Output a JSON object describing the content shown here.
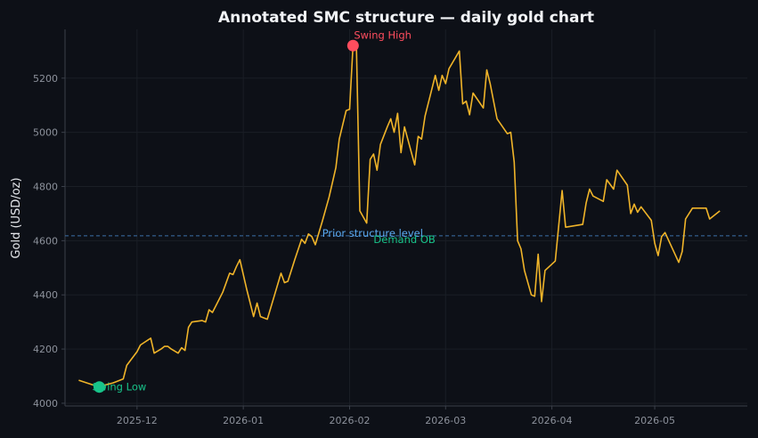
{
  "chart_data": {
    "type": "line",
    "title": "Annotated SMC structure — daily gold chart",
    "xlabel": "",
    "ylabel": "Gold (USD/oz)",
    "ylim": [
      3990,
      5380
    ],
    "xlim": [
      "2025-11-10",
      "2026-05-28"
    ],
    "grid": true,
    "yticks": [
      4000,
      4200,
      4400,
      4600,
      4800,
      5000,
      5200
    ],
    "xticks": [
      {
        "date": "2025-12-01",
        "label": "2025-12"
      },
      {
        "date": "2026-01-01",
        "label": "2026-01"
      },
      {
        "date": "2026-02-01",
        "label": "2026-02"
      },
      {
        "date": "2026-03-01",
        "label": "2026-03"
      },
      {
        "date": "2026-04-01",
        "label": "2026-04"
      },
      {
        "date": "2026-05-01",
        "label": "2026-05"
      }
    ],
    "series": [
      {
        "color": "#f0b429",
        "points": [
          [
            "2025-11-14",
            4085
          ],
          [
            "2025-11-20",
            4060
          ],
          [
            "2025-11-21",
            4065
          ],
          [
            "2025-11-24",
            4075
          ],
          [
            "2025-11-27",
            4090
          ],
          [
            "2025-11-28",
            4140
          ],
          [
            "2025-12-01",
            4190
          ],
          [
            "2025-12-02",
            4215
          ],
          [
            "2025-12-05",
            4240
          ],
          [
            "2025-12-06",
            4185
          ],
          [
            "2025-12-08",
            4200
          ],
          [
            "2025-12-09",
            4210
          ],
          [
            "2025-12-10",
            4210
          ],
          [
            "2025-12-11",
            4200
          ],
          [
            "2025-12-13",
            4185
          ],
          [
            "2025-12-14",
            4205
          ],
          [
            "2025-12-15",
            4195
          ],
          [
            "2025-12-16",
            4280
          ],
          [
            "2025-12-17",
            4300
          ],
          [
            "2025-12-20",
            4305
          ],
          [
            "2025-12-21",
            4300
          ],
          [
            "2025-12-22",
            4345
          ],
          [
            "2025-12-23",
            4335
          ],
          [
            "2025-12-24",
            4360
          ],
          [
            "2025-12-26",
            4410
          ],
          [
            "2025-12-28",
            4480
          ],
          [
            "2025-12-29",
            4475
          ],
          [
            "2025-12-30",
            4505
          ],
          [
            "2025-12-31",
            4530
          ],
          [
            "2026-01-02",
            4420
          ],
          [
            "2026-01-04",
            4320
          ],
          [
            "2026-01-05",
            4370
          ],
          [
            "2026-01-06",
            4320
          ],
          [
            "2026-01-08",
            4310
          ],
          [
            "2026-01-10",
            4395
          ],
          [
            "2026-01-12",
            4480
          ],
          [
            "2026-01-13",
            4445
          ],
          [
            "2026-01-14",
            4450
          ],
          [
            "2026-01-16",
            4530
          ],
          [
            "2026-01-18",
            4605
          ],
          [
            "2026-01-19",
            4590
          ],
          [
            "2026-01-20",
            4625
          ],
          [
            "2026-01-21",
            4615
          ],
          [
            "2026-01-22",
            4585
          ],
          [
            "2026-01-24",
            4670
          ],
          [
            "2026-01-26",
            4760
          ],
          [
            "2026-01-28",
            4870
          ],
          [
            "2026-01-29",
            4975
          ],
          [
            "2026-01-31",
            5080
          ],
          [
            "2026-02-01",
            5085
          ],
          [
            "2026-02-02",
            5320
          ],
          [
            "2026-02-03",
            5310
          ],
          [
            "2026-02-04",
            4710
          ],
          [
            "2026-02-06",
            4665
          ],
          [
            "2026-02-07",
            4900
          ],
          [
            "2026-02-08",
            4920
          ],
          [
            "2026-02-09",
            4860
          ],
          [
            "2026-02-10",
            4955
          ],
          [
            "2026-02-12",
            5020
          ],
          [
            "2026-02-13",
            5050
          ],
          [
            "2026-02-14",
            5000
          ],
          [
            "2026-02-15",
            5070
          ],
          [
            "2026-02-16",
            4925
          ],
          [
            "2026-02-17",
            5020
          ],
          [
            "2026-02-20",
            4880
          ],
          [
            "2026-02-21",
            4985
          ],
          [
            "2026-02-22",
            4975
          ],
          [
            "2026-02-23",
            5060
          ],
          [
            "2026-02-26",
            5210
          ],
          [
            "2026-02-27",
            5155
          ],
          [
            "2026-02-28",
            5210
          ],
          [
            "2026-03-01",
            5180
          ],
          [
            "2026-03-02",
            5235
          ],
          [
            "2026-03-05",
            5300
          ],
          [
            "2026-03-06",
            5105
          ],
          [
            "2026-03-07",
            5115
          ],
          [
            "2026-03-08",
            5065
          ],
          [
            "2026-03-09",
            5145
          ],
          [
            "2026-03-12",
            5090
          ],
          [
            "2026-03-13",
            5230
          ],
          [
            "2026-03-14",
            5180
          ],
          [
            "2026-03-16",
            5050
          ],
          [
            "2026-03-19",
            4995
          ],
          [
            "2026-03-20",
            5000
          ],
          [
            "2026-03-21",
            4890
          ],
          [
            "2026-03-22",
            4600
          ],
          [
            "2026-03-23",
            4570
          ],
          [
            "2026-03-24",
            4490
          ],
          [
            "2026-03-26",
            4400
          ],
          [
            "2026-03-27",
            4395
          ],
          [
            "2026-03-28",
            4550
          ],
          [
            "2026-03-29",
            4375
          ],
          [
            "2026-03-30",
            4490
          ],
          [
            "2026-04-02",
            4525
          ],
          [
            "2026-04-04",
            4785
          ],
          [
            "2026-04-05",
            4650
          ],
          [
            "2026-04-10",
            4660
          ],
          [
            "2026-04-11",
            4740
          ],
          [
            "2026-04-12",
            4790
          ],
          [
            "2026-04-13",
            4765
          ],
          [
            "2026-04-16",
            4745
          ],
          [
            "2026-04-17",
            4825
          ],
          [
            "2026-04-19",
            4790
          ],
          [
            "2026-04-20",
            4860
          ],
          [
            "2026-04-23",
            4805
          ],
          [
            "2026-04-24",
            4700
          ],
          [
            "2026-04-25",
            4735
          ],
          [
            "2026-04-26",
            4705
          ],
          [
            "2026-04-27",
            4725
          ],
          [
            "2026-04-30",
            4675
          ],
          [
            "2026-05-01",
            4590
          ],
          [
            "2026-05-02",
            4545
          ],
          [
            "2026-05-03",
            4615
          ],
          [
            "2026-05-04",
            4630
          ],
          [
            "2026-05-08",
            4520
          ],
          [
            "2026-05-09",
            4560
          ],
          [
            "2026-05-10",
            4680
          ],
          [
            "2026-05-12",
            4720
          ],
          [
            "2026-05-16",
            4720
          ],
          [
            "2026-05-17",
            4680
          ],
          [
            "2026-05-20",
            4710
          ]
        ]
      }
    ],
    "reference_lines": [
      {
        "y": 4618,
        "color": "#3d6fa8",
        "style": "dashed"
      }
    ],
    "annotations": [
      {
        "text": "Swing High",
        "x": "2026-02-02",
        "y": 5320,
        "color": "#ff4d5e",
        "marker_color": "#ff4d5e"
      },
      {
        "text": "Swing Low",
        "x": "2025-11-20",
        "y": 4060,
        "color": "#18c48a",
        "marker_color": "#18c48a"
      },
      {
        "text": "Prior structure level",
        "x": "2026-01-24",
        "y": 4618,
        "color": "#5aa9f0"
      },
      {
        "text": "Demand OB",
        "x": "2026-02-08",
        "y": 4605,
        "color": "#18c48a"
      }
    ]
  }
}
